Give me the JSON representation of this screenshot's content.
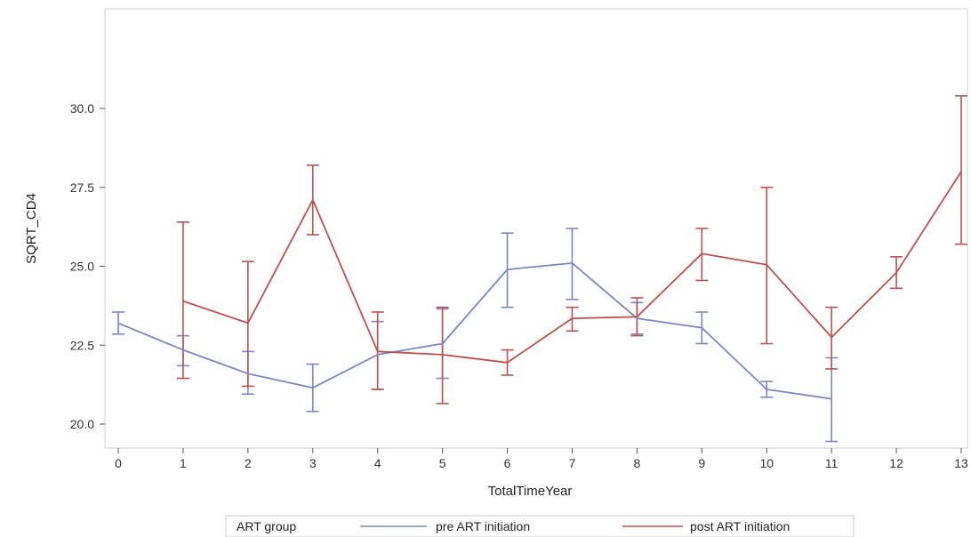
{
  "chart_data": {
    "type": "line",
    "xlabel": "TotalTimeYear",
    "ylabel": "SQRT_CD4",
    "xlim": [
      0,
      13
    ],
    "ylim": [
      19.5,
      30.5
    ],
    "x_ticks": [
      "0",
      "1",
      "2",
      "3",
      "4",
      "5",
      "6",
      "7",
      "8",
      "9",
      "10",
      "11",
      "12",
      "13"
    ],
    "y_ticks": [
      "20.0",
      "22.5",
      "25.0",
      "27.5",
      "30.0"
    ],
    "grid": false,
    "legend": {
      "title": "ART group",
      "position": "bottom"
    },
    "series": [
      {
        "name": "pre ART initiation",
        "color": "#7b86c4",
        "x": [
          0,
          1,
          2,
          3,
          4,
          5,
          6,
          7,
          8,
          9,
          10,
          11
        ],
        "y": [
          23.2,
          22.35,
          21.6,
          21.15,
          22.2,
          22.55,
          24.9,
          25.1,
          23.35,
          23.05,
          21.1,
          20.8
        ],
        "lower": [
          22.85,
          21.85,
          20.95,
          20.4,
          21.1,
          21.45,
          23.7,
          23.95,
          22.85,
          22.55,
          20.85,
          19.45
        ],
        "upper": [
          23.55,
          22.8,
          22.3,
          21.9,
          23.25,
          23.65,
          26.05,
          26.2,
          23.85,
          23.55,
          21.35,
          22.1
        ]
      },
      {
        "name": "post ART initiation",
        "color": "#c0504d",
        "x": [
          1,
          2,
          3,
          4,
          5,
          6,
          7,
          8,
          9,
          10,
          11,
          12,
          13
        ],
        "y": [
          23.9,
          23.2,
          27.1,
          22.3,
          22.2,
          21.95,
          23.35,
          23.4,
          25.4,
          25.05,
          22.75,
          24.8,
          28.0
        ],
        "lower": [
          21.45,
          21.2,
          26.0,
          21.1,
          20.65,
          21.55,
          22.95,
          22.8,
          24.55,
          22.55,
          21.75,
          24.3,
          25.7
        ],
        "upper": [
          26.4,
          25.15,
          28.2,
          23.55,
          23.7,
          22.35,
          23.7,
          24.0,
          26.2,
          27.5,
          23.7,
          25.3,
          30.4
        ]
      }
    ]
  }
}
